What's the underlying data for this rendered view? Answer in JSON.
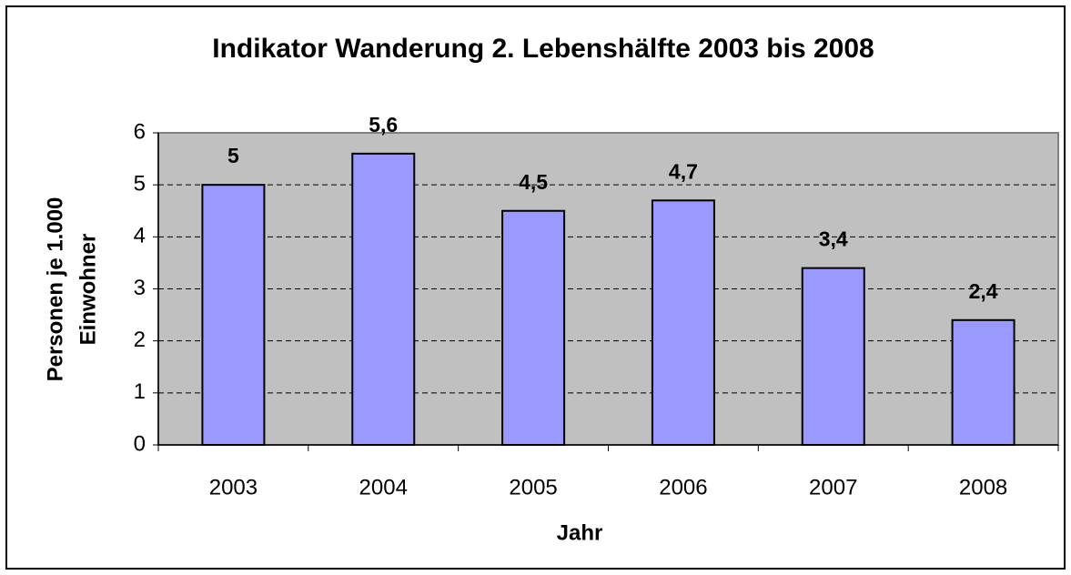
{
  "chart_data": {
    "type": "bar",
    "title": "Indikator Wanderung 2. Lebenshälfte 2003 bis 2008",
    "x_label": "Jahr",
    "y_label": [
      "Personen je 1.000",
      "Einwohner"
    ],
    "categories": [
      "2003",
      "2004",
      "2005",
      "2006",
      "2007",
      "2008"
    ],
    "values": [
      5,
      5.6,
      4.5,
      4.7,
      3.4,
      2.4
    ],
    "value_labels": [
      "5",
      "5,6",
      "4,5",
      "4,7",
      "3,4",
      "2,4"
    ],
    "color": "#9999ff",
    "ylim": [
      0,
      6
    ],
    "yticks": [
      0,
      1,
      2,
      3,
      4,
      5,
      6
    ],
    "grid": true
  }
}
